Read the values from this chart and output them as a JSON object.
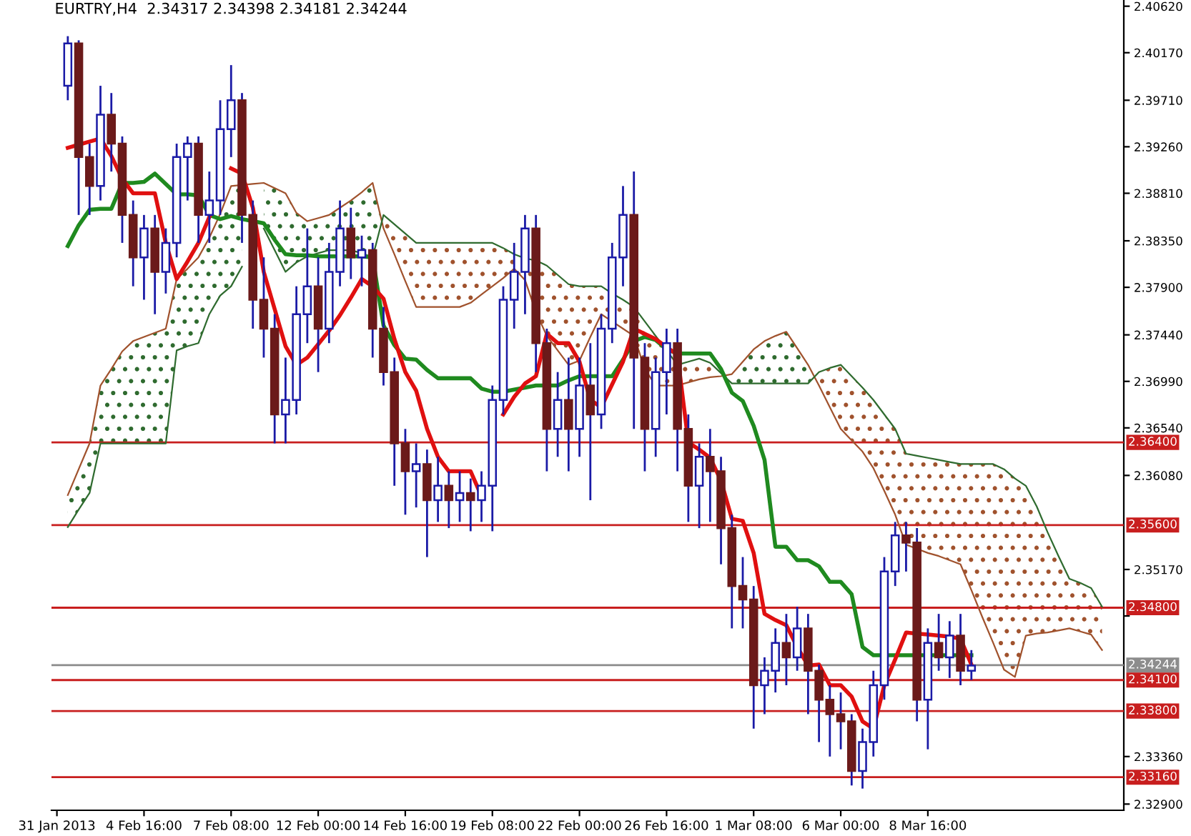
{
  "chart_data": {
    "type": "candlestick",
    "title": "EURTRY,H4  2.34317 2.34398 2.34181 2.34244",
    "categories": [
      "31 Jan 2013",
      null,
      null,
      null,
      null,
      null,
      null,
      null,
      "4 Feb 16:00",
      null,
      null,
      null,
      null,
      null,
      null,
      null,
      "7 Feb 08:00",
      null,
      null,
      null,
      null,
      null,
      null,
      null,
      "12 Feb 00:00",
      null,
      null,
      null,
      null,
      null,
      null,
      null,
      "14 Feb 16:00",
      null,
      null,
      null,
      null,
      null,
      null,
      null,
      "19 Feb 08:00",
      null,
      null,
      null,
      null,
      null,
      null,
      null,
      "22 Feb 00:00",
      null,
      null,
      null,
      null,
      null,
      null,
      null,
      "26 Feb 16:00",
      null,
      null,
      null,
      null,
      null,
      null,
      null,
      "1 Mar 08:00",
      null,
      null,
      null,
      null,
      null,
      null,
      null,
      "6 Mar 00:00",
      null,
      null,
      null,
      null,
      null,
      null,
      null,
      "8 Mar 16:00",
      null,
      null,
      null,
      null,
      null,
      null,
      null,
      null,
      null,
      null,
      null,
      null,
      null,
      null,
      null,
      null,
      null
    ],
    "ylim": [
      2.3284,
      2.4068
    ],
    "yticks": [
      {
        "value": 2.4062,
        "label": "2.40620"
      },
      {
        "value": 2.4017,
        "label": "2.40170"
      },
      {
        "value": 2.3971,
        "label": "2.39710"
      },
      {
        "value": 2.3926,
        "label": "2.39260"
      },
      {
        "value": 2.3881,
        "label": "2.38810"
      },
      {
        "value": 2.3835,
        "label": "2.38350"
      },
      {
        "value": 2.379,
        "label": "2.37900"
      },
      {
        "value": 2.3744,
        "label": "2.37440"
      },
      {
        "value": 2.3699,
        "label": "2.36990"
      },
      {
        "value": 2.3654,
        "label": "2.36540"
      },
      {
        "value": 2.3608,
        "label": "2.36080"
      },
      {
        "value": 2.3517,
        "label": "2.35170"
      },
      {
        "value": 2.3472,
        "label": null
      },
      {
        "value": 2.3336,
        "label": "2.33360"
      },
      {
        "value": 2.329,
        "label": "2.32900"
      }
    ],
    "grid": false,
    "series": [
      {
        "type": "line",
        "color": "#a0522d",
        "values": [
          null,
          2.3589,
          2.3614,
          2.3639,
          2.3695,
          2.3711,
          2.3728,
          2.3738,
          2.3742,
          2.3746,
          2.375,
          2.3798,
          2.3808,
          2.3819,
          2.3838,
          2.3861,
          2.3888,
          2.3889,
          2.389,
          2.3891,
          2.3886,
          2.3881,
          2.3862,
          2.3854,
          2.3857,
          2.386,
          2.3867,
          2.3874,
          2.3882,
          2.3891,
          2.3847,
          2.3822,
          2.3796,
          2.3771,
          2.3771,
          2.3771,
          2.3771,
          2.3771,
          2.3775,
          2.3783,
          2.3791,
          2.3799,
          2.3808,
          2.3797,
          2.3766,
          2.3743,
          2.3729,
          2.3715,
          2.3719,
          2.3742,
          2.3764,
          2.3757,
          2.375,
          2.3743,
          2.3711,
          2.3695,
          2.3695,
          2.3695,
          2.3698,
          2.3701,
          2.3703,
          2.3704,
          2.3706,
          2.3718,
          2.373,
          2.3738,
          2.3743,
          2.3747,
          2.3731,
          2.3715,
          2.3695,
          2.3674,
          2.3653,
          2.3642,
          2.3631,
          2.3615,
          2.3593,
          2.357,
          2.3541,
          2.3537,
          2.3533,
          2.353,
          2.3526,
          2.3522,
          2.3497,
          2.3471,
          2.3446,
          2.342,
          2.3413,
          2.3453,
          2.3455,
          2.3456,
          2.3458,
          2.346,
          2.3457,
          2.3454,
          2.3439,
          null
        ]
      },
      {
        "type": "line",
        "color": "#2f6b2f",
        "values": [
          null,
          2.3558,
          2.3575,
          2.3591,
          2.3639,
          2.3639,
          2.3639,
          2.3639,
          2.3639,
          2.3639,
          2.3639,
          2.3729,
          2.3733,
          2.3736,
          2.3764,
          2.3782,
          2.3791,
          2.381,
          null,
          2.3847,
          2.3826,
          2.3805,
          2.3814,
          2.382,
          2.3823,
          2.3826,
          2.3826,
          2.3826,
          2.3823,
          2.3819,
          2.386,
          2.3851,
          2.3842,
          2.3833,
          2.3833,
          2.3833,
          2.3833,
          2.3833,
          2.3833,
          2.3833,
          2.3833,
          2.3828,
          2.3822,
          2.3818,
          2.3816,
          2.3811,
          2.3802,
          2.3793,
          2.3791,
          2.3791,
          2.3791,
          2.3784,
          2.3778,
          2.3771,
          2.3757,
          2.3743,
          2.3729,
          2.3715,
          2.3718,
          2.3721,
          2.3717,
          2.3707,
          2.3697,
          2.3697,
          2.3697,
          2.3697,
          2.3697,
          2.3697,
          2.3697,
          2.3697,
          2.3708,
          2.3712,
          2.3715,
          2.3704,
          2.3693,
          2.3681,
          2.3667,
          2.3653,
          2.3629,
          2.3627,
          2.3625,
          2.3623,
          2.3621,
          2.3619,
          2.3619,
          2.3619,
          2.3619,
          2.3614,
          2.3605,
          2.3598,
          2.3578,
          2.3553,
          2.353,
          2.3508,
          2.3504,
          2.3499,
          2.3481,
          null
        ]
      },
      {
        "type": "line",
        "color": "#1f8a1f",
        "values": [
          null,
          2.383,
          2.385,
          2.3865,
          2.3866,
          2.3866,
          2.3891,
          2.3891,
          2.3892,
          2.39,
          2.389,
          2.388,
          2.388,
          2.3879,
          2.386,
          2.3856,
          2.3859,
          2.3856,
          2.3854,
          2.3852,
          2.3836,
          2.3822,
          2.3821,
          2.3821,
          2.382,
          2.382,
          2.382,
          2.382,
          2.382,
          2.3819,
          2.3753,
          2.3734,
          2.3721,
          2.372,
          2.371,
          2.3702,
          2.3702,
          2.3702,
          2.3702,
          2.3692,
          2.3689,
          2.3689,
          2.3691,
          2.3693,
          2.3695,
          2.3695,
          2.3695,
          2.37,
          2.3704,
          2.3704,
          2.3704,
          2.3704,
          2.372,
          2.3738,
          2.3742,
          2.3739,
          2.373,
          2.3726,
          2.3726,
          2.3726,
          2.3726,
          2.3711,
          2.3688,
          2.368,
          2.3656,
          2.3623,
          2.3539,
          2.3539,
          2.3526,
          2.3526,
          2.352,
          2.3505,
          2.3505,
          2.3493,
          2.3442,
          2.3434,
          2.3434,
          2.3434,
          2.3434,
          2.3434,
          2.3434,
          2.3434,
          2.3434,
          2.3434,
          2.3434,
          null,
          null,
          null,
          null,
          null,
          null,
          null,
          null,
          null,
          null,
          null,
          null,
          null
        ]
      },
      {
        "color": "#1a1aa6",
        "colors": [
          null,
          "#1a1aa6",
          "#6b1a1a",
          "#6b1a1a",
          "#1a1aa6",
          "#6b1a1a",
          "#6b1a1a",
          "#6b1a1a",
          "#1a1aa6",
          "#6b1a1a",
          "#1a1aa6",
          "#1a1aa6",
          "#1a1aa6",
          "#6b1a1a",
          "#1a1aa6",
          "#1a1aa6",
          "#1a1aa6",
          "#6b1a1a",
          "#6b1a1a",
          "#6b1a1a",
          "#6b1a1a",
          "#1a1aa6",
          "#1a1aa6",
          "#1a1aa6",
          "#6b1a1a",
          "#1a1aa6",
          "#1a1aa6",
          "#6b1a1a",
          "#1a1aa6",
          "#6b1a1a",
          "#6b1a1a",
          "#6b1a1a",
          "#6b1a1a",
          "#1a1aa6",
          "#6b1a1a",
          "#1a1aa6",
          "#6b1a1a",
          "#1a1aa6",
          "#6b1a1a",
          "#1a1aa6",
          "#1a1aa6",
          "#1a1aa6",
          "#1a1aa6",
          "#1a1aa6",
          "#6b1a1a",
          "#6b1a1a",
          "#1a1aa6",
          "#6b1a1a",
          "#1a1aa6",
          "#6b1a1a",
          "#1a1aa6",
          "#1a1aa6",
          "#1a1aa6",
          "#6b1a1a",
          "#6b1a1a",
          "#1a1aa6",
          "#1a1aa6",
          "#6b1a1a",
          "#6b1a1a",
          "#1a1aa6",
          "#6b1a1a",
          "#6b1a1a",
          "#6b1a1a",
          "#6b1a1a",
          "#6b1a1a",
          "#1a1aa6",
          "#1a1aa6",
          "#6b1a1a",
          "#1a1aa6",
          "#6b1a1a",
          "#6b1a1a",
          "#6b1a1a",
          "#6b1a1a",
          "#6b1a1a",
          "#1a1aa6",
          "#1a1aa6",
          "#1a1aa6",
          "#1a1aa6",
          "#6b1a1a",
          "#6b1a1a",
          "#1a1aa6",
          "#6b1a1a",
          "#1a1aa6",
          "#6b1a1a",
          "#1a1aa6",
          null,
          null,
          null,
          null,
          null,
          null,
          null,
          null,
          null,
          null,
          null,
          null,
          null
        ],
        "ohlc": [
          null,
          [
            2.3985,
            2.4033,
            2.3971,
            2.4026
          ],
          [
            2.4026,
            2.4029,
            2.386,
            2.3916
          ],
          [
            2.3916,
            2.3929,
            2.386,
            2.3888
          ],
          [
            2.3888,
            2.3985,
            2.3874,
            2.3957
          ],
          [
            2.3957,
            2.3978,
            2.3902,
            2.3929
          ],
          [
            2.3929,
            2.3936,
            2.3833,
            2.386
          ],
          [
            2.386,
            2.3874,
            2.3791,
            2.3819
          ],
          [
            2.3819,
            2.386,
            2.3778,
            2.3847
          ],
          [
            2.3847,
            2.386,
            2.3764,
            2.3805
          ],
          [
            2.3805,
            2.3847,
            2.3784,
            2.3833
          ],
          [
            2.3833,
            2.3929,
            2.3819,
            2.3916
          ],
          [
            2.3916,
            2.3936,
            2.3874,
            2.3929
          ],
          [
            2.3929,
            2.3936,
            2.3833,
            2.386
          ],
          [
            2.386,
            2.3902,
            2.3833,
            2.3874
          ],
          [
            2.3874,
            2.3971,
            2.386,
            2.3943
          ],
          [
            2.3943,
            2.4005,
            2.3916,
            2.3971
          ],
          [
            2.3971,
            2.3978,
            2.3833,
            2.386
          ],
          [
            2.386,
            2.3874,
            2.375,
            2.3778
          ],
          [
            2.3778,
            2.3819,
            2.3722,
            2.375
          ],
          [
            2.375,
            2.3764,
            2.3639,
            2.3667
          ],
          [
            2.3667,
            2.3722,
            2.3639,
            2.3681
          ],
          [
            2.3681,
            2.3791,
            2.3667,
            2.3764
          ],
          [
            2.3764,
            2.3847,
            2.3736,
            2.3791
          ],
          [
            2.3791,
            2.3819,
            2.3708,
            2.375
          ],
          [
            2.375,
            2.3833,
            2.3736,
            2.3805
          ],
          [
            2.3805,
            2.3874,
            2.3791,
            2.3847
          ],
          [
            2.3847,
            2.3867,
            2.3798,
            2.3819
          ],
          [
            2.3819,
            2.384,
            2.3791,
            2.3826
          ],
          [
            2.3826,
            2.3833,
            2.3722,
            2.375
          ],
          [
            2.375,
            2.3771,
            2.3695,
            2.3708
          ],
          [
            2.3708,
            2.3722,
            2.3598,
            2.3639
          ],
          [
            2.3639,
            2.3653,
            2.357,
            2.3612
          ],
          [
            2.3612,
            2.3639,
            2.3577,
            2.3619
          ],
          [
            2.3619,
            2.3633,
            2.3529,
            2.3584
          ],
          [
            2.3584,
            2.3626,
            2.3563,
            2.3598
          ],
          [
            2.3598,
            2.3612,
            2.3557,
            2.3584
          ],
          [
            2.3584,
            2.3612,
            2.3563,
            2.3591
          ],
          [
            2.3591,
            2.3605,
            2.3554,
            2.3584
          ],
          [
            2.3584,
            2.3612,
            2.3563,
            2.3598
          ],
          [
            2.3598,
            2.3695,
            2.3554,
            2.3681
          ],
          [
            2.3681,
            2.3791,
            2.3667,
            2.3778
          ],
          [
            2.3778,
            2.3833,
            2.375,
            2.3805
          ],
          [
            2.3805,
            2.386,
            2.3764,
            2.3847
          ],
          [
            2.3847,
            2.386,
            2.3708,
            2.3736
          ],
          [
            2.3736,
            2.375,
            2.3612,
            2.3653
          ],
          [
            2.3653,
            2.3708,
            2.3626,
            2.3681
          ],
          [
            2.3681,
            2.3722,
            2.3612,
            2.3653
          ],
          [
            2.3653,
            2.3722,
            2.3626,
            2.3695
          ],
          [
            2.3695,
            2.3736,
            2.3584,
            2.3667
          ],
          [
            2.3667,
            2.3764,
            2.3653,
            2.375
          ],
          [
            2.375,
            2.3833,
            2.3736,
            2.3819
          ],
          [
            2.3819,
            2.3888,
            2.3791,
            2.386
          ],
          [
            2.386,
            2.3902,
            2.3653,
            2.3722
          ],
          [
            2.3722,
            2.3736,
            2.3612,
            2.3653
          ],
          [
            2.3653,
            2.3722,
            2.3626,
            2.3708
          ],
          [
            2.3708,
            2.375,
            2.3667,
            2.3736
          ],
          [
            2.3736,
            2.375,
            2.3612,
            2.3653
          ],
          [
            2.3653,
            2.3667,
            2.3563,
            2.3598
          ],
          [
            2.3598,
            2.3639,
            2.3557,
            2.3626
          ],
          [
            2.3626,
            2.3653,
            2.3563,
            2.3612
          ],
          [
            2.3612,
            2.3626,
            2.3522,
            2.3557
          ],
          [
            2.3557,
            2.357,
            2.346,
            2.3501
          ],
          [
            2.3501,
            2.3529,
            2.346,
            2.3488
          ],
          [
            2.3488,
            2.3501,
            2.3363,
            2.3405
          ],
          [
            2.3405,
            2.3432,
            2.3377,
            2.3419
          ],
          [
            2.3419,
            2.346,
            2.3398,
            2.3446
          ],
          [
            2.3446,
            2.3474,
            2.3405,
            2.3432
          ],
          [
            2.3432,
            2.3481,
            2.3419,
            2.346
          ],
          [
            2.346,
            2.3474,
            2.3377,
            2.3419
          ],
          [
            2.3419,
            2.3425,
            2.335,
            2.3391
          ],
          [
            2.3391,
            2.3405,
            2.3336,
            2.3377
          ],
          [
            2.3377,
            2.3398,
            2.3343,
            2.337
          ],
          [
            2.337,
            2.3377,
            2.3308,
            2.3322
          ],
          [
            2.3322,
            2.3363,
            2.3305,
            2.335
          ],
          [
            2.335,
            2.3419,
            2.3336,
            2.3405
          ],
          [
            2.3405,
            2.3529,
            2.3391,
            2.3515
          ],
          [
            2.3515,
            2.3563,
            2.3501,
            2.355
          ],
          [
            2.355,
            2.3563,
            2.3515,
            2.3543
          ],
          [
            2.3543,
            2.3557,
            2.337,
            2.3391
          ],
          [
            2.3391,
            2.346,
            2.3343,
            2.3446
          ],
          [
            2.3446,
            2.3474,
            2.3419,
            2.3432
          ],
          [
            2.3432,
            2.3467,
            2.3412,
            2.3453
          ],
          [
            2.3453,
            2.3474,
            2.3405,
            2.3419
          ],
          [
            2.3419,
            2.3439,
            2.341,
            2.3424
          ],
          null,
          null,
          null,
          null,
          null,
          null,
          null,
          null,
          null,
          null,
          null,
          null,
          null
        ]
      },
      {
        "type": "line",
        "color": "#e01010",
        "values": [
          null,
          2.3925,
          2.3928,
          2.3931,
          2.3934,
          2.3917,
          2.3895,
          2.3881,
          2.3881,
          2.3881,
          2.3833,
          2.3798,
          2.3815,
          2.3833,
          2.3858,
          null,
          2.3905,
          2.39,
          2.3867,
          2.3805,
          2.3769,
          2.3733,
          2.3715,
          2.3722,
          2.3735,
          2.3748,
          2.3763,
          2.378,
          2.3798,
          2.3791,
          2.3779,
          2.374,
          2.3708,
          2.369,
          2.3653,
          2.3626,
          2.3612,
          2.3612,
          2.3612,
          2.3588,
          null,
          2.3667,
          2.3684,
          2.3697,
          2.3704,
          2.3745,
          2.3736,
          2.3736,
          2.3718,
          2.3681,
          2.3674,
          2.3696,
          2.3718,
          2.375,
          2.3745,
          2.374,
          2.3732,
          2.3725,
          2.364,
          2.3633,
          2.3625,
          2.3603,
          2.3566,
          2.3564,
          2.3533,
          2.3474,
          2.3468,
          2.3463,
          2.3442,
          2.3424,
          2.3425,
          2.3405,
          2.3405,
          2.3394,
          2.337,
          2.3363,
          2.3405,
          2.343,
          2.3456,
          2.3455,
          2.3454,
          2.3453,
          2.3452,
          2.345,
          2.3425,
          null,
          null,
          null,
          null,
          null,
          null,
          null,
          null,
          null,
          null,
          null,
          null,
          null
        ]
      }
    ],
    "ref_lines": [
      {
        "axis": "y",
        "value": 2.364,
        "label": "2.36400",
        "color": "#c81e1e"
      },
      {
        "axis": "y",
        "value": 2.356,
        "label": "2.35600",
        "color": "#c81e1e"
      },
      {
        "axis": "y",
        "value": 2.348,
        "label": "2.34800",
        "color": "#c81e1e"
      },
      {
        "axis": "y",
        "value": 2.34244,
        "label": "2.34244",
        "color": "#8c8c8c"
      },
      {
        "axis": "y",
        "value": 2.341,
        "label": "2.34100",
        "color": "#c81e1e"
      },
      {
        "axis": "y",
        "value": 2.338,
        "label": "2.33800",
        "color": "#c81e1e"
      },
      {
        "axis": "y",
        "value": 2.3316,
        "label": "2.33160",
        "color": "#c81e1e"
      }
    ]
  }
}
